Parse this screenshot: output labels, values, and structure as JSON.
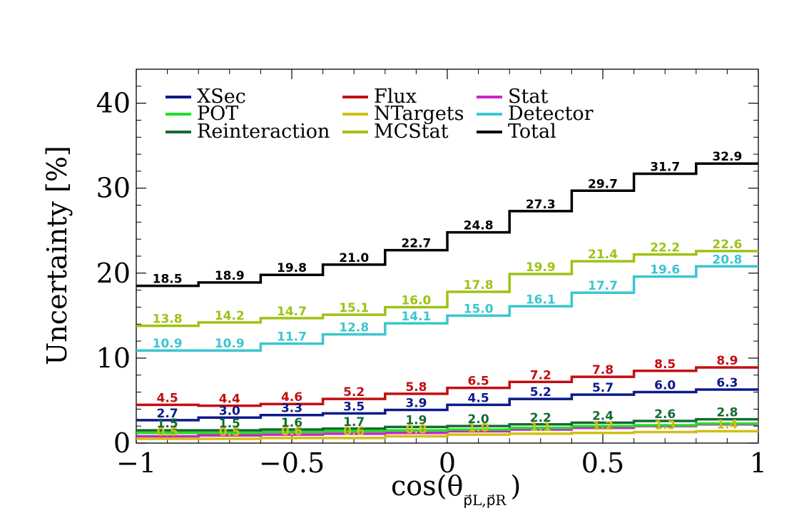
{
  "chart_data": {
    "type": "line",
    "title": "",
    "xlabel": "cos(θ",
    "xlabel_sub": "p⃗L,p⃗R",
    "xlabel_close": ")",
    "ylabel": "Uncertainty [%]",
    "xlim": [
      -1,
      1
    ],
    "ylim": [
      0,
      44
    ],
    "xticks": [
      -1,
      -0.5,
      0,
      0.5,
      1
    ],
    "xtick_labels": [
      "−1",
      "−0.5",
      "0",
      "0.5",
      "1"
    ],
    "yticks": [
      0,
      10,
      20,
      30,
      40
    ],
    "ytick_labels": [
      "0",
      "10",
      "20",
      "30",
      "40"
    ],
    "bin_edges": [
      -1,
      -0.8,
      -0.6,
      -0.4,
      -0.2,
      0,
      0.2,
      0.4,
      0.6,
      0.8,
      1
    ],
    "legend_position": "top-left",
    "series": [
      {
        "name": "XSec",
        "color": "#0b1a8c",
        "labels_shown": true,
        "values": [
          2.7,
          3.0,
          3.3,
          3.5,
          3.9,
          4.5,
          5.2,
          5.7,
          6.0,
          6.3
        ]
      },
      {
        "name": "Flux",
        "color": "#c10f12",
        "labels_shown": true,
        "values": [
          4.5,
          4.4,
          4.6,
          5.2,
          5.8,
          6.5,
          7.2,
          7.8,
          8.5,
          8.9
        ]
      },
      {
        "name": "Stat",
        "color": "#cc22cc",
        "labels_shown": false,
        "values": [
          0.8,
          0.9,
          1.0,
          1.1,
          1.2,
          1.4,
          1.6,
          1.8,
          2.0,
          2.2
        ]
      },
      {
        "name": "POT",
        "color": "#22e022",
        "labels_shown": false,
        "values": [
          1.2,
          1.2,
          1.3,
          1.4,
          1.5,
          1.6,
          1.8,
          2.0,
          2.1,
          2.3
        ]
      },
      {
        "name": "NTargets",
        "color": "#cfc015",
        "labels_shown": true,
        "values": [
          0.5,
          0.5,
          0.6,
          0.6,
          0.8,
          1.0,
          1.1,
          1.2,
          1.3,
          1.4
        ]
      },
      {
        "name": "Detector",
        "color": "#3cc6cf",
        "labels_shown": true,
        "values": [
          10.9,
          10.9,
          11.7,
          12.8,
          14.1,
          15.0,
          16.1,
          17.7,
          19.6,
          20.8
        ]
      },
      {
        "name": "Reinteraction",
        "color": "#146b32",
        "labels_shown": true,
        "values": [
          1.5,
          1.5,
          1.6,
          1.7,
          1.9,
          2.0,
          2.2,
          2.4,
          2.6,
          2.8
        ]
      },
      {
        "name": "MCStat",
        "color": "#9cc314",
        "labels_shown": true,
        "values": [
          13.8,
          14.2,
          14.7,
          15.1,
          16.0,
          17.8,
          19.9,
          21.4,
          22.2,
          22.6
        ]
      },
      {
        "name": "Total",
        "color": "#000000",
        "labels_shown": true,
        "values": [
          18.5,
          18.9,
          19.8,
          21.0,
          22.7,
          24.8,
          27.3,
          29.7,
          31.7,
          32.9
        ]
      }
    ]
  }
}
